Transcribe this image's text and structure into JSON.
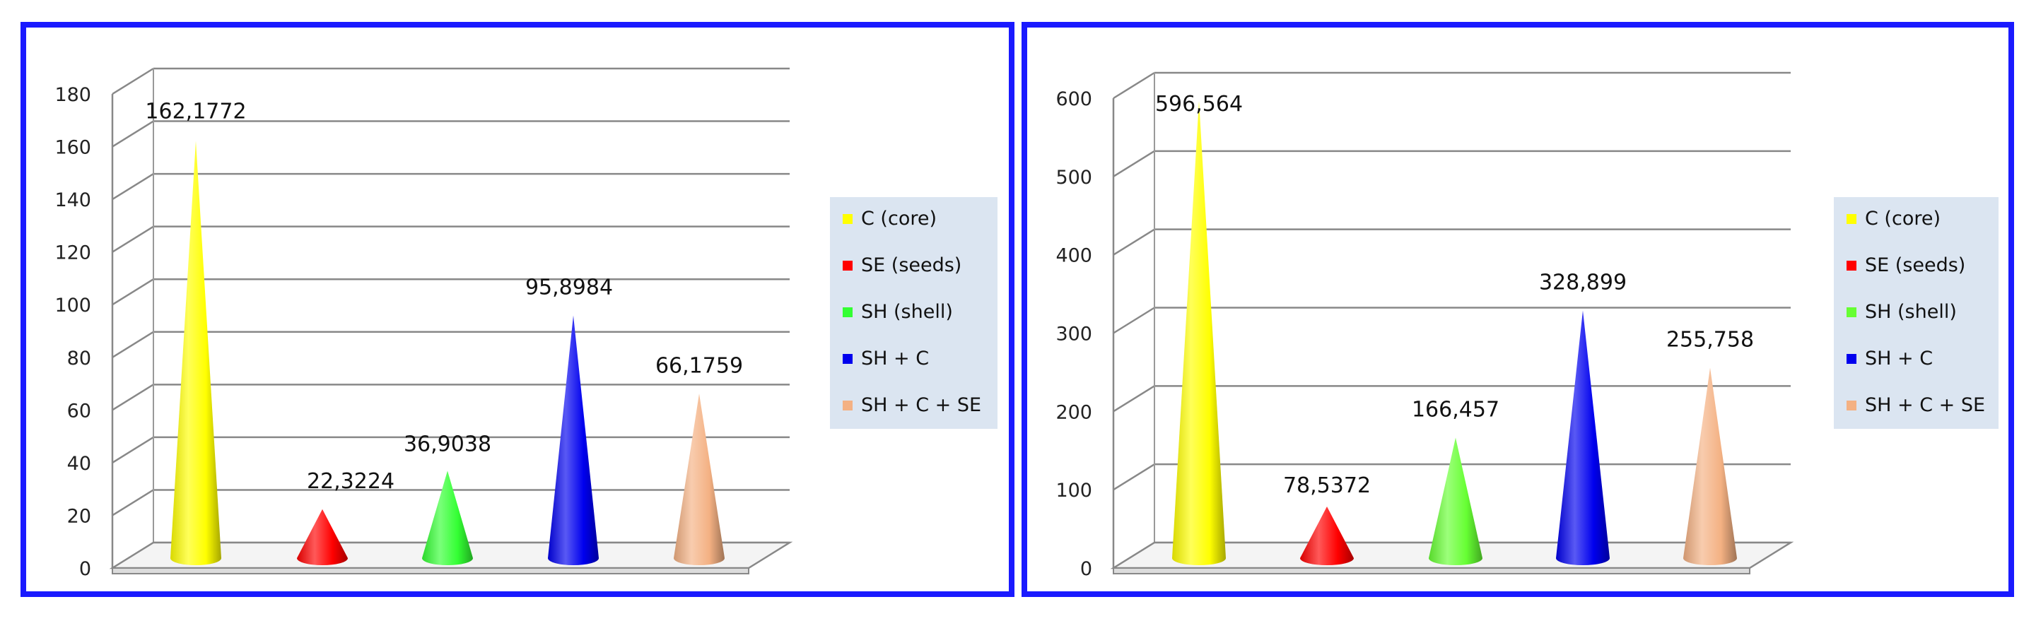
{
  "legend": [
    {
      "label": "C (core)",
      "color": "#ffff00"
    },
    {
      "label": "SE (seeds)",
      "color": "#ff0000"
    },
    {
      "label": "SH (shell)",
      "color": "#33ff33"
    },
    {
      "label": "SH + C",
      "color": "#0000ee"
    },
    {
      "label": "SH + C + SE",
      "color": "#f4b183"
    }
  ],
  "chart_data": [
    {
      "type": "bar",
      "style": "3d-cone",
      "categories": [
        "C (core)",
        "SE (seeds)",
        "SH (shell)",
        "SH + C",
        "SH + C + SE"
      ],
      "values": [
        162.1772,
        22.3224,
        36.9038,
        95.8984,
        66.1759
      ],
      "data_labels": [
        "162,1772",
        "22,3224",
        "36,9038",
        "95,8984",
        "66,1759"
      ],
      "colors": [
        "#ffff00",
        "#ff0000",
        "#33ff33",
        "#0000ee",
        "#f4b183"
      ],
      "yticks": [
        "0",
        "20",
        "40",
        "60",
        "80",
        "100",
        "120",
        "140",
        "160",
        "180"
      ],
      "ylim": [
        0,
        180
      ],
      "grid": true,
      "legend_position": "right"
    },
    {
      "type": "bar",
      "style": "3d-cone",
      "categories": [
        "C (core)",
        "SE (seeds)",
        "SH (shell)",
        "SH + C",
        "SH + C + SE"
      ],
      "values": [
        596.564,
        78.5372,
        166.457,
        328.899,
        255.758
      ],
      "data_labels": [
        "596,564",
        "78,5372",
        "166,457",
        "328,899",
        "255,758"
      ],
      "colors": [
        "#ffff00",
        "#ff0000",
        "#66ff33",
        "#0000ee",
        "#f4b183"
      ],
      "yticks": [
        "0",
        "100",
        "200",
        "300",
        "400",
        "500",
        "600"
      ],
      "ylim": [
        0,
        600
      ],
      "grid": true,
      "legend_position": "right"
    }
  ]
}
